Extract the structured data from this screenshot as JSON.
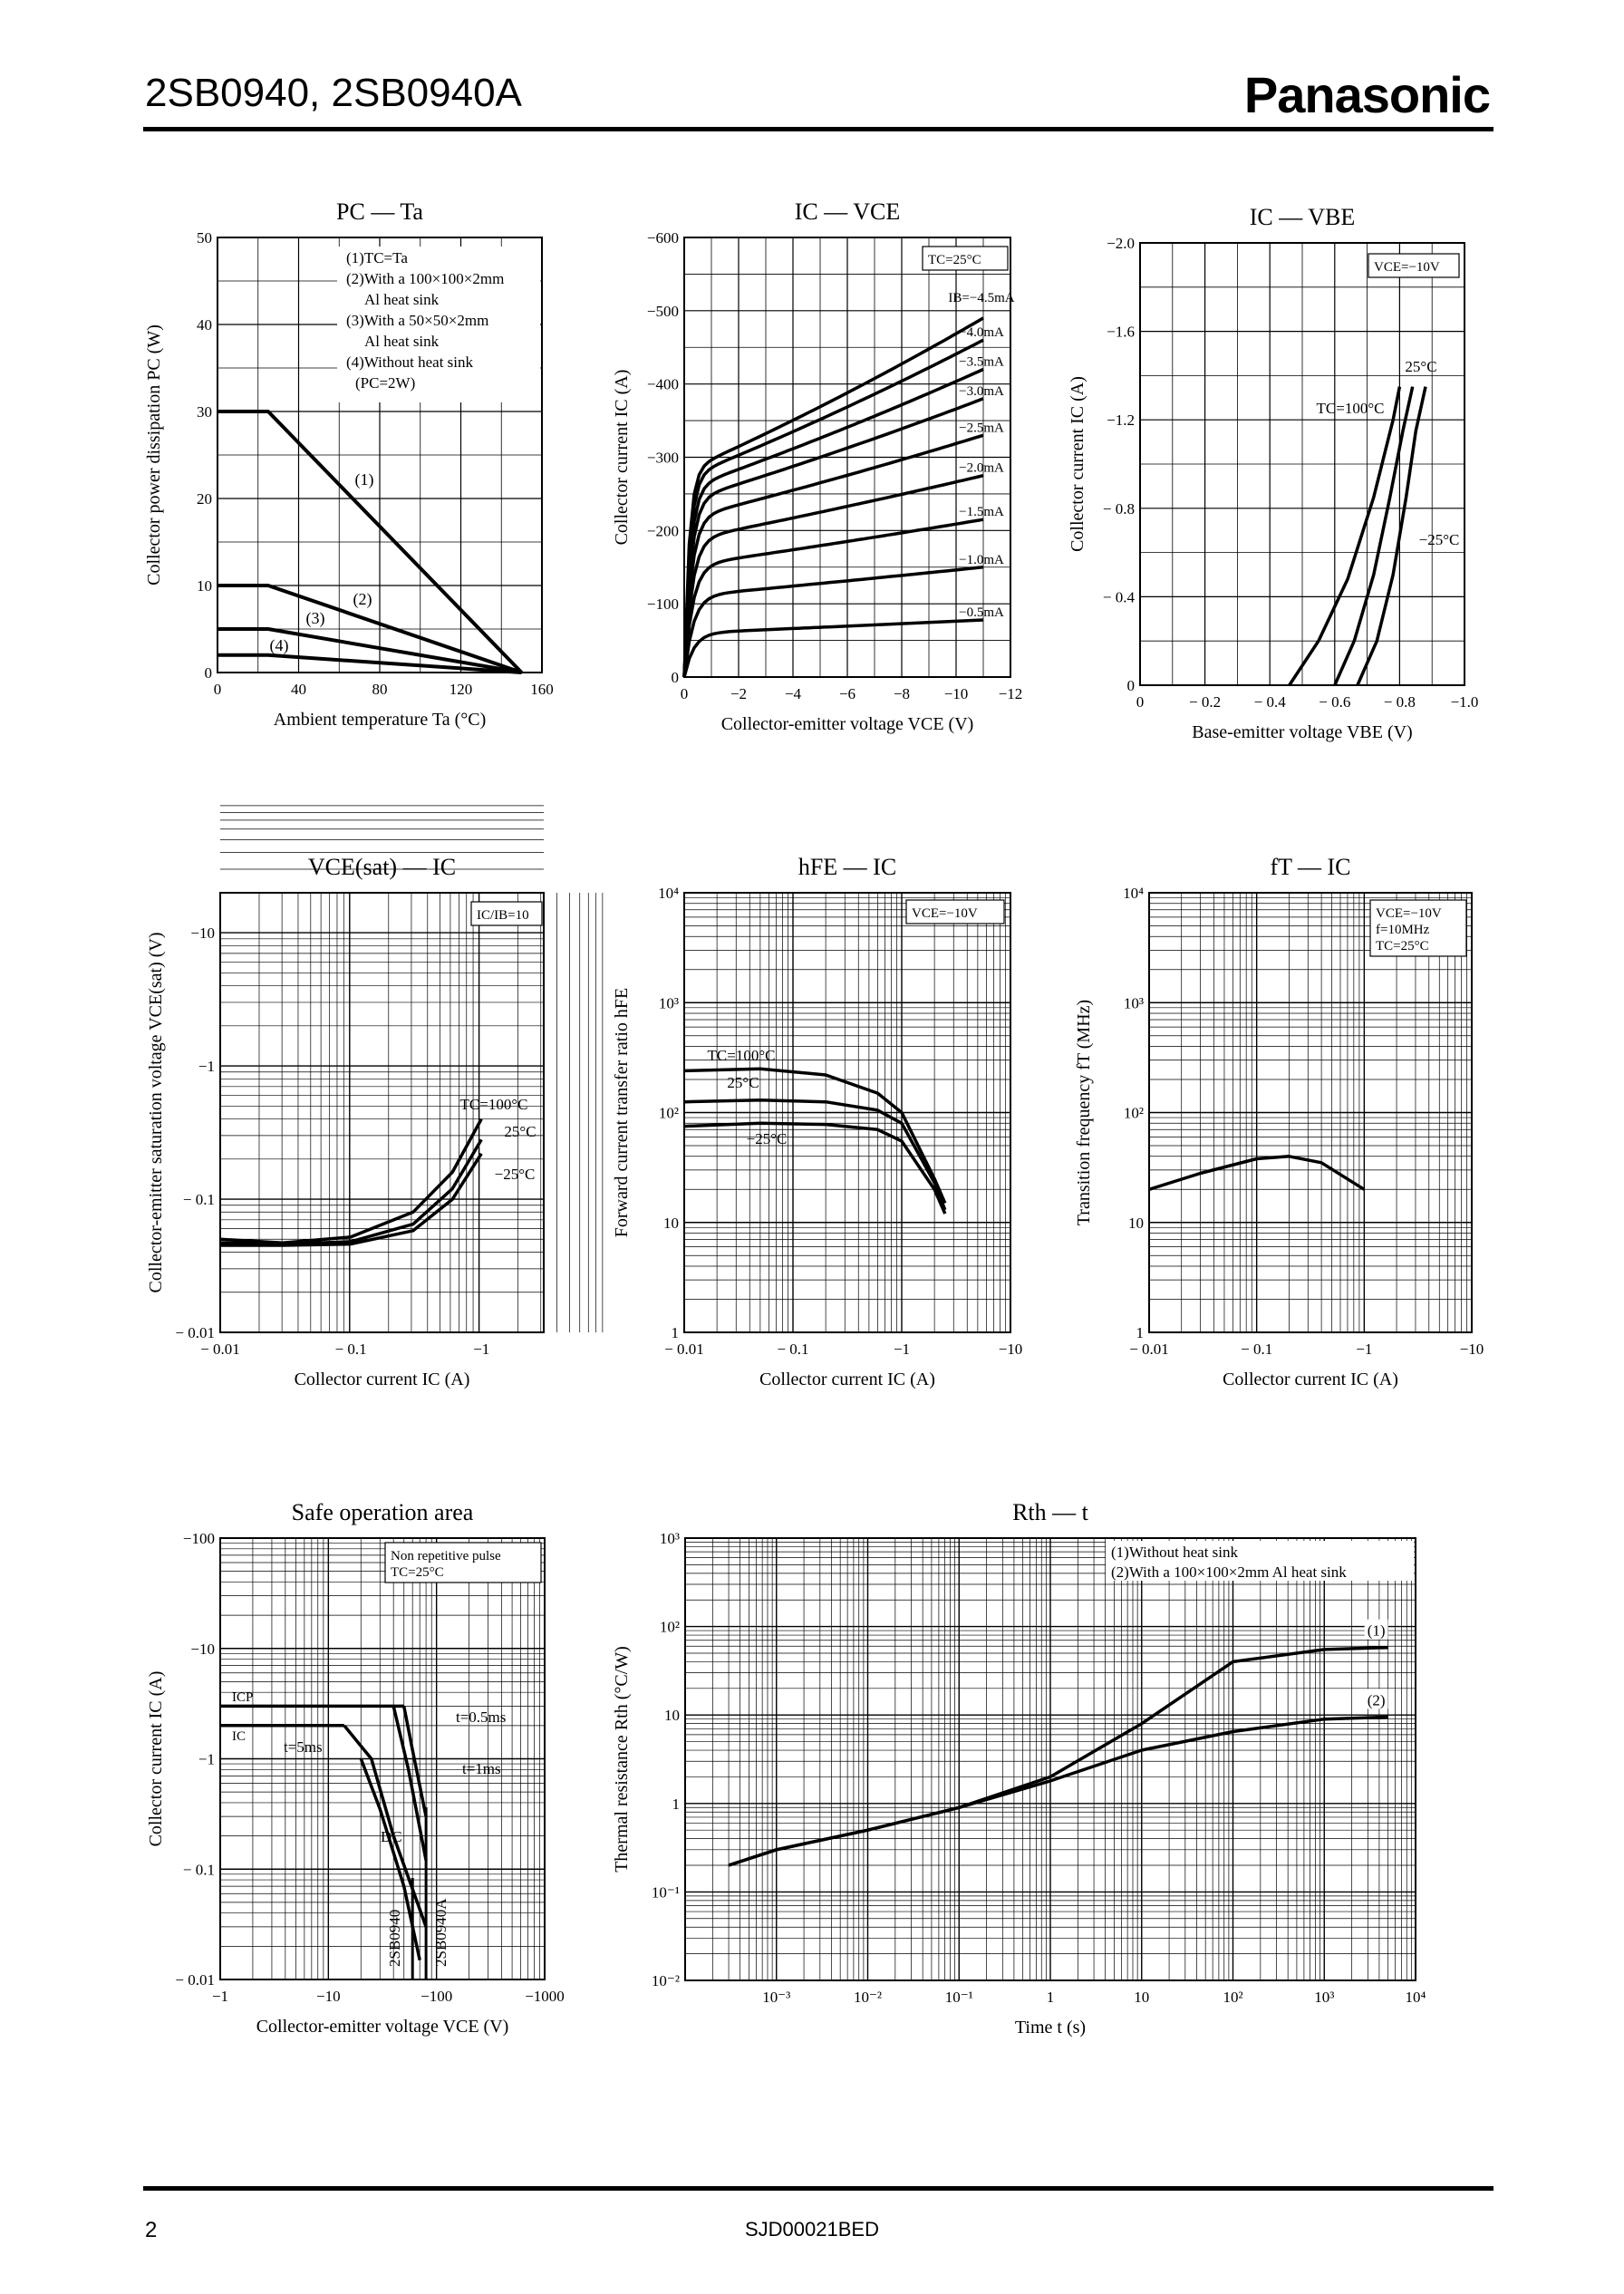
{
  "header": {
    "title": "2SB0940, 2SB0940A",
    "brand": "Panasonic"
  },
  "footer": {
    "page": "2",
    "code": "SJD00021BED"
  },
  "charts": {
    "pc_ta": {
      "title": "PC — Ta",
      "xlabel": "Ambient temperature  Ta  (°C)",
      "ylabel": "Collector power dissipation  PC  (W)",
      "xticks": [
        "0",
        "40",
        "80",
        "120",
        "160"
      ],
      "yticks": [
        "0",
        "10",
        "20",
        "30",
        "40",
        "50"
      ],
      "legend": [
        "(1)TC=Ta",
        "(2)With a 100×100×2mm",
        "Al heat sink",
        "(3)With a 50×50×2mm",
        "Al heat sink",
        "(4)Without heat sink",
        "(PC=2W)"
      ],
      "curve_labels": [
        "(1)",
        "(2)",
        "(3)",
        "(4)"
      ]
    },
    "ic_vce": {
      "title": "IC — VCE",
      "xlabel": "Collector-emitter voltage  VCE  (V)",
      "ylabel": "Collector current  IC  (A)",
      "xticks": [
        "0",
        "−2",
        "−4",
        "−6",
        "−8",
        "−10",
        "−12"
      ],
      "yticks": [
        "0",
        "−100",
        "−200",
        "−300",
        "−400",
        "−500",
        "−600"
      ],
      "note": "TC=25°C",
      "curve_labels": [
        "IB=−4.5mA",
        "−4.0mA",
        "−3.5mA",
        "−3.0mA",
        "−2.5mA",
        "−2.0mA",
        "−1.5mA",
        "−1.0mA",
        "−0.5mA"
      ]
    },
    "ic_vbe": {
      "title": "IC — VBE",
      "xlabel": "Base-emitter voltage  VBE  (V)",
      "ylabel": "Collector current  IC  (A)",
      "xticks": [
        "0",
        "− 0.2",
        "− 0.4",
        "− 0.6",
        "− 0.8",
        "−1.0"
      ],
      "yticks": [
        "0",
        "− 0.4",
        "− 0.8",
        "−1.2",
        "−1.6",
        "−2.0"
      ],
      "note": "VCE=−10V",
      "curve_labels": [
        "25°C",
        "TC=100°C",
        "−25°C"
      ]
    },
    "vcesat_ic": {
      "title": "VCE(sat) — IC",
      "xlabel": "Collector current  IC  (A)",
      "ylabel": "Collector-emitter saturation voltage  VCE(sat)  (V)",
      "xticks": [
        "− 0.01",
        "− 0.1",
        "−1"
      ],
      "yticks": [
        "− 0.01",
        "− 0.1",
        "−1",
        "−10"
      ],
      "note": "IC/IB=10",
      "curve_labels": [
        "TC=100°C",
        "25°C",
        "−25°C"
      ]
    },
    "hfe_ic": {
      "title": "hFE — IC",
      "xlabel": "Collector current  IC  (A)",
      "ylabel": "Forward current transfer ratio  hFE",
      "xticks": [
        "− 0.01",
        "− 0.1",
        "−1",
        "−10"
      ],
      "yticks": [
        "1",
        "10",
        "10²",
        "10³",
        "10⁴"
      ],
      "note": "VCE=−10V",
      "curve_labels": [
        "TC=100°C",
        "25°C",
        "−25°C"
      ]
    },
    "ft_ic": {
      "title": "fT — IC",
      "xlabel": "Collector current  IC  (A)",
      "ylabel": "Transition frequency  fT  (MHz)",
      "xticks": [
        "− 0.01",
        "− 0.1",
        "−1",
        "−10"
      ],
      "yticks": [
        "1",
        "10",
        "10²",
        "10³",
        "10⁴"
      ],
      "note": [
        "VCE=−10V",
        "f=10MHz",
        "TC=25°C"
      ]
    },
    "soa": {
      "title": "Safe operation area",
      "xlabel": "Collector-emitter voltage  VCE  (V)",
      "ylabel": "Collector current  IC  (A)",
      "xticks": [
        "−1",
        "−10",
        "−100",
        "−1000"
      ],
      "yticks": [
        "− 0.01",
        "− 0.1",
        "−1",
        "−10",
        "−100"
      ],
      "note": [
        "Non repetitive pulse",
        "TC=25°C"
      ],
      "labels": [
        "ICP",
        "IC",
        "t=0.5ms",
        "t=5ms",
        "t=1ms",
        "DC",
        "2SB0940",
        "2SB0940A"
      ]
    },
    "rth_t": {
      "title": "Rth — t",
      "xlabel": "Time  t  (s)",
      "ylabel": "Thermal resistance  Rth  (°C/W)",
      "xticks": [
        "10⁻³",
        "10⁻²",
        "10⁻¹",
        "1",
        "10",
        "10²",
        "10³",
        "10⁴"
      ],
      "yticks": [
        "10⁻²",
        "10⁻¹",
        "1",
        "10",
        "10²",
        "10³"
      ],
      "legend": [
        "(1)Without heat sink",
        "(2)With a 100×100×2mm Al heat sink"
      ],
      "curve_labels": [
        "(1)",
        "(2)"
      ]
    }
  },
  "chart_data": [
    {
      "type": "line",
      "title": "PC — Ta",
      "xlabel": "Ambient temperature Ta (°C)",
      "ylabel": "Collector power dissipation PC (W)",
      "xlim": [
        0,
        160
      ],
      "ylim": [
        0,
        50
      ],
      "series": [
        {
          "name": "(1)",
          "x": [
            0,
            25,
            150
          ],
          "y": [
            30,
            30,
            0
          ]
        },
        {
          "name": "(2)",
          "x": [
            0,
            25,
            150
          ],
          "y": [
            10,
            10,
            0
          ]
        },
        {
          "name": "(3)",
          "x": [
            0,
            25,
            150
          ],
          "y": [
            5,
            5,
            0
          ]
        },
        {
          "name": "(4)",
          "x": [
            0,
            25,
            150
          ],
          "y": [
            2,
            2,
            0
          ]
        }
      ]
    },
    {
      "type": "line",
      "title": "IC — VCE",
      "note": "TC=25°C",
      "xlabel": "Collector-emitter voltage VCE (V)",
      "ylabel": "Collector current IC (A)",
      "xlim": [
        0,
        -12
      ],
      "ylim": [
        0,
        -600
      ],
      "series": [
        {
          "name": "IB=−4.5mA",
          "end": -490
        },
        {
          "name": "−4.0mA",
          "end": -460
        },
        {
          "name": "−3.5mA",
          "end": -420
        },
        {
          "name": "−3.0mA",
          "end": -380
        },
        {
          "name": "−2.5mA",
          "end": -330
        },
        {
          "name": "−2.0mA",
          "end": -275
        },
        {
          "name": "−1.5mA",
          "end": -215
        },
        {
          "name": "−1.0mA",
          "end": -150
        },
        {
          "name": "−0.5mA",
          "end": -78
        }
      ]
    },
    {
      "type": "line",
      "title": "IC — VBE",
      "note": "VCE=−10V",
      "xlabel": "Base-emitter voltage VBE (V)",
      "ylabel": "Collector current IC (A)",
      "xlim": [
        0,
        -1.0
      ],
      "ylim": [
        0,
        -2.0
      ],
      "series": [
        {
          "name": "TC=100°C",
          "x": [
            -0.46,
            -0.55,
            -0.64,
            -0.72,
            -0.78,
            -0.8
          ],
          "y": [
            0,
            -0.2,
            -0.48,
            -0.85,
            -1.2,
            -1.35
          ]
        },
        {
          "name": "25°C",
          "x": [
            -0.6,
            -0.66,
            -0.72,
            -0.77,
            -0.81,
            -0.84
          ],
          "y": [
            0,
            -0.2,
            -0.5,
            -0.85,
            -1.15,
            -1.35
          ]
        },
        {
          "name": "−25°C",
          "x": [
            -0.67,
            -0.73,
            -0.78,
            -0.82,
            -0.85,
            -0.88
          ],
          "y": [
            0,
            -0.2,
            -0.5,
            -0.85,
            -1.15,
            -1.35
          ]
        }
      ]
    },
    {
      "type": "line",
      "title": "VCE(sat) — IC",
      "note": "IC/IB=10",
      "xscale": "log",
      "yscale": "log",
      "xlim": [
        -0.01,
        -3
      ],
      "ylim": [
        -0.01,
        -20
      ],
      "series": [
        {
          "name": "TC=100°C",
          "x": [
            -0.01,
            -0.03,
            -0.1,
            -0.3,
            -0.6,
            -1.0
          ],
          "y": [
            -0.05,
            -0.047,
            -0.052,
            -0.08,
            -0.16,
            -0.4
          ]
        },
        {
          "name": "25°C",
          "x": [
            -0.01,
            -0.03,
            -0.1,
            -0.3,
            -0.6,
            -1.0
          ],
          "y": [
            -0.047,
            -0.046,
            -0.048,
            -0.065,
            -0.12,
            -0.28
          ]
        },
        {
          "name": "−25°C",
          "x": [
            -0.01,
            -0.03,
            -0.1,
            -0.3,
            -0.6,
            -1.0
          ],
          "y": [
            -0.045,
            -0.045,
            -0.046,
            -0.058,
            -0.1,
            -0.22
          ]
        }
      ]
    },
    {
      "type": "line",
      "title": "hFE — IC",
      "note": "VCE=−10V",
      "xscale": "log",
      "yscale": "log",
      "xlim": [
        -0.01,
        -10
      ],
      "ylim": [
        1,
        10000
      ],
      "series": [
        {
          "name": "TC=100°C",
          "x": [
            -0.01,
            -0.05,
            -0.2,
            -0.6,
            -1.0,
            -2.0,
            -2.5
          ],
          "y": [
            240,
            250,
            220,
            150,
            100,
            25,
            15
          ]
        },
        {
          "name": "25°C",
          "x": [
            -0.01,
            -0.05,
            -0.2,
            -0.6,
            -1.0,
            -2.0,
            -2.5
          ],
          "y": [
            125,
            130,
            125,
            105,
            80,
            23,
            13
          ]
        },
        {
          "name": "−25°C",
          "x": [
            -0.01,
            -0.05,
            -0.2,
            -0.6,
            -1.0,
            -2.0,
            -2.5
          ],
          "y": [
            75,
            80,
            78,
            70,
            55,
            20,
            12
          ]
        }
      ]
    },
    {
      "type": "line",
      "title": "fT — IC",
      "note": "VCE=−10V, f=10MHz, TC=25°C",
      "xscale": "log",
      "yscale": "log",
      "xlim": [
        -0.01,
        -10
      ],
      "ylim": [
        1,
        10000
      ],
      "series": [
        {
          "name": "fT",
          "x": [
            -0.01,
            -0.03,
            -0.1,
            -0.2,
            -0.4,
            -1.0
          ],
          "y": [
            20,
            28,
            38,
            40,
            35,
            20
          ]
        }
      ]
    },
    {
      "type": "line",
      "title": "Safe operation area",
      "note": "Non repetitive pulse, TC=25°C",
      "xscale": "log",
      "yscale": "log",
      "xlim": [
        -1,
        -1000
      ],
      "ylim": [
        -0.01,
        -100
      ],
      "series": [
        {
          "name": "ICP",
          "x": [
            -1,
            -50
          ],
          "y": [
            -3,
            -3
          ]
        },
        {
          "name": "IC",
          "x": [
            -1,
            -14
          ],
          "y": [
            -2,
            -2
          ]
        },
        {
          "name": "t=0.5ms",
          "x": [
            -50,
            -60,
            -80
          ],
          "y": [
            -3,
            -1.2,
            -0.3
          ]
        },
        {
          "name": "t=1ms",
          "x": [
            -40,
            -55,
            -80
          ],
          "y": [
            -3,
            -0.8,
            -0.12
          ]
        },
        {
          "name": "t=5ms",
          "x": [
            -14,
            -25,
            -40,
            -80
          ],
          "y": [
            -2,
            -1.0,
            -0.2,
            -0.03
          ]
        },
        {
          "name": "DC",
          "x": [
            -20,
            -30,
            -50,
            -70
          ],
          "y": [
            -1.0,
            -0.35,
            -0.07,
            -0.015
          ]
        }
      ]
    },
    {
      "type": "line",
      "title": "Rth — t",
      "xscale": "log",
      "yscale": "log",
      "xlim": [
        0.0001,
        10000
      ],
      "ylim": [
        0.01,
        1000
      ],
      "series": [
        {
          "name": "(1)Without heat sink",
          "x": [
            0.0003,
            0.001,
            0.01,
            0.1,
            1,
            10,
            100,
            1000,
            5000
          ],
          "y": [
            0.2,
            0.3,
            0.5,
            0.9,
            2.0,
            8,
            40,
            55,
            58
          ]
        },
        {
          "name": "(2)With a 100×100×2mm Al heat sink",
          "x": [
            0.0003,
            0.001,
            0.01,
            0.1,
            1,
            10,
            100,
            1000,
            5000
          ],
          "y": [
            0.2,
            0.3,
            0.5,
            0.9,
            1.8,
            4.0,
            6.5,
            9,
            9.5
          ]
        }
      ]
    }
  ]
}
